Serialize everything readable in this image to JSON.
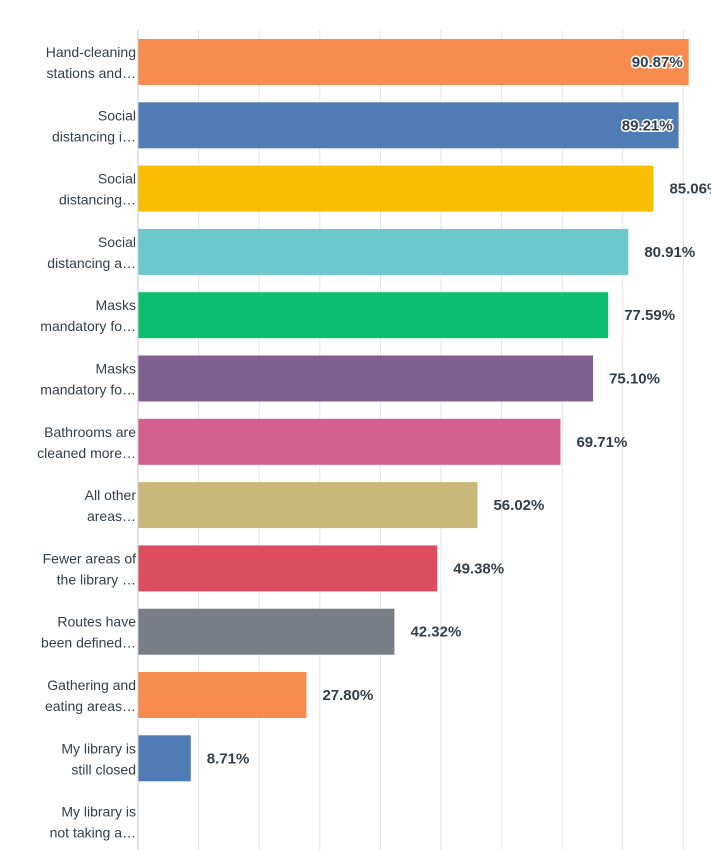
{
  "chart_data": {
    "type": "bar",
    "orientation": "horizontal",
    "categories": [
      [
        "Hand-cleaning",
        "stations and…"
      ],
      [
        "Social",
        "distancing i…"
      ],
      [
        "Social",
        "distancing…"
      ],
      [
        "Social",
        "distancing a…"
      ],
      [
        "Masks",
        "mandatory fo…"
      ],
      [
        "Masks",
        "mandatory fo…"
      ],
      [
        "Bathrooms are",
        "cleaned more…"
      ],
      [
        "All other",
        "areas…"
      ],
      [
        "Fewer areas of",
        "the library …"
      ],
      [
        "Routes have",
        "been defined…"
      ],
      [
        "Gathering and",
        "eating areas…"
      ],
      [
        "My library is",
        "still closed"
      ],
      [
        "My library is",
        "not taking a…"
      ]
    ],
    "values": [
      90.87,
      89.21,
      85.06,
      80.91,
      77.59,
      75.1,
      69.71,
      56.02,
      49.38,
      42.32,
      27.8,
      8.71,
      null
    ],
    "value_labels": [
      "90.87%",
      "89.21%",
      "85.06%",
      "80.91%",
      "77.59%",
      "75.10%",
      "69.71%",
      "56.02%",
      "49.38%",
      "42.32%",
      "27.80%",
      "8.71%",
      ""
    ],
    "colors": [
      "#f78b4e",
      "#507cb6",
      "#f9be00",
      "#6bc8cd",
      "#0bbf6e",
      "#7e5f8f",
      "#d35f8f",
      "#c7b879",
      "#dc4e5f",
      "#777e85",
      "#f78b4e",
      "#507cb6",
      "#f9be00"
    ],
    "xlim": [
      0,
      100
    ],
    "grid": true,
    "gridline_color": "#e3e5e6",
    "axis_color": "#c8cacc"
  }
}
